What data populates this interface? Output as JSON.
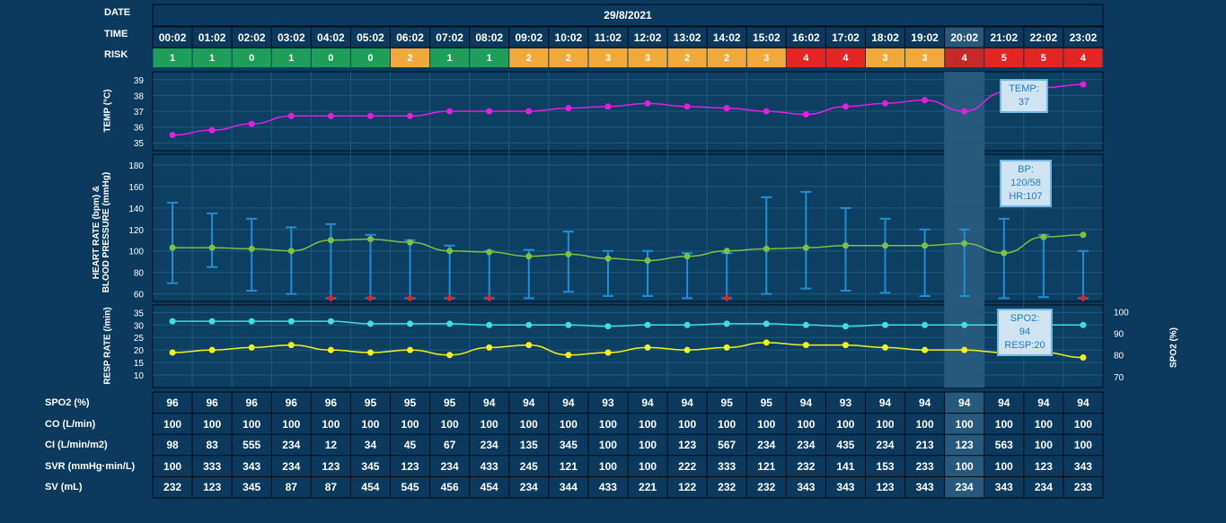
{
  "row_labels": {
    "date": "DATE",
    "time": "TIME",
    "risk": "RISK"
  },
  "date": "29/8/2021",
  "times": [
    "00:02",
    "01:02",
    "02:02",
    "03:02",
    "04:02",
    "05:02",
    "06:02",
    "07:02",
    "08:02",
    "09:02",
    "10:02",
    "11:02",
    "12:02",
    "13:02",
    "14:02",
    "15:02",
    "16:02",
    "17:02",
    "18:02",
    "19:02",
    "20:02",
    "21:02",
    "22:02",
    "23:02"
  ],
  "risk": [
    "1",
    "1",
    "0",
    "1",
    "0",
    "0",
    "2",
    "1",
    "1",
    "2",
    "2",
    "3",
    "3",
    "2",
    "2",
    "3",
    "4",
    "4",
    "3",
    "3",
    "4",
    "5",
    "5",
    "4"
  ],
  "risk_colors": {
    "0": "#1f9e5a",
    "1": "#1f9e5a",
    "2": "#f0a93a",
    "3": "#f0a93a",
    "4": "#e52424",
    "5": "#e52424"
  },
  "highlight_index": 20,
  "axis_titles": {
    "temp": "TEMP (°C)",
    "hr_bp_line1": "HEART RATE (bpm) &",
    "hr_bp_line2": "BLOOD PRESSURE (mmHg)",
    "resp": "RESP RATE (/min)",
    "spo2": "SPO2 (%)"
  },
  "tooltips": {
    "temp": [
      "TEMP:",
      "37"
    ],
    "bp": [
      "BP:",
      "120/58",
      "HR:107"
    ],
    "spo2": [
      "SPO2:",
      "94",
      "RESP:20"
    ]
  },
  "colors": {
    "temp": "#e020e0",
    "hr": "#7cc142",
    "bp": "#1f8fd6",
    "spo2": "#3de0e0",
    "resp": "#f2f21a",
    "alert": "#e52424"
  },
  "chart_data": [
    {
      "type": "line",
      "name": "temperature",
      "ylabel": "TEMP (°C)",
      "ylim": [
        34.5,
        39.5
      ],
      "yticks": [
        35,
        36,
        37,
        38,
        39
      ],
      "values": [
        35.5,
        35.8,
        36.2,
        36.7,
        36.7,
        36.7,
        36.7,
        37.0,
        37.0,
        37.0,
        37.2,
        37.3,
        37.5,
        37.3,
        37.2,
        37.0,
        36.8,
        37.3,
        37.5,
        37.7,
        37.0,
        38.2,
        38.5,
        38.7
      ]
    },
    {
      "type": "line",
      "name": "heart rate & blood pressure",
      "ylabel": "HEART RATE (bpm) & BLOOD PRESSURE (mmHg)",
      "ylim": [
        53,
        190
      ],
      "yticks": [
        60,
        80,
        100,
        120,
        140,
        160,
        180
      ],
      "hr": [
        103,
        103,
        102,
        100,
        110,
        111,
        108,
        100,
        99,
        95,
        97,
        93,
        91,
        95,
        100,
        102,
        103,
        105,
        105,
        105,
        107,
        98,
        113,
        115
      ],
      "bp_high": [
        145,
        135,
        130,
        122,
        125,
        115,
        110,
        105,
        100,
        101,
        118,
        100,
        100,
        98,
        98,
        150,
        155,
        140,
        130,
        120,
        120,
        130,
        115,
        100
      ],
      "bp_low": [
        70,
        85,
        63,
        60,
        56,
        56,
        56,
        56,
        56,
        56,
        62,
        58,
        58,
        56,
        56,
        60,
        65,
        63,
        61,
        58,
        58,
        56,
        57,
        56
      ],
      "alert_markers": [
        4,
        5,
        6,
        7,
        8,
        14,
        23
      ]
    },
    {
      "type": "line",
      "name": "resp rate & spo2",
      "ylabel": "RESP RATE (/min)",
      "ylim": [
        5,
        38
      ],
      "yticks": [
        10,
        15,
        20,
        25,
        30,
        35
      ],
      "y2label": "SPO2 (%)",
      "y2ticks": [
        70,
        80,
        90,
        100
      ],
      "resp": [
        19,
        20,
        21,
        22,
        20,
        19,
        20,
        18,
        21,
        22,
        18,
        19,
        21,
        20,
        21,
        23,
        22,
        22,
        21,
        20,
        20,
        19,
        19,
        17
      ],
      "spo2_line": [
        31.5,
        31.5,
        31.5,
        31.5,
        31.5,
        30.5,
        30.5,
        30.5,
        30,
        30,
        30,
        29.5,
        30,
        30,
        30.5,
        30.5,
        30,
        29.5,
        30,
        30,
        30,
        30,
        30,
        30
      ]
    }
  ],
  "table": {
    "rows": [
      {
        "label": "SPO2 (%)",
        "values": [
          "96",
          "96",
          "96",
          "96",
          "96",
          "95",
          "95",
          "95",
          "94",
          "94",
          "94",
          "93",
          "94",
          "94",
          "95",
          "95",
          "94",
          "93",
          "94",
          "94",
          "94",
          "94",
          "94",
          "94"
        ]
      },
      {
        "label": "CO (L/min)",
        "values": [
          "100",
          "100",
          "100",
          "100",
          "100",
          "100",
          "100",
          "100",
          "100",
          "100",
          "100",
          "100",
          "100",
          "100",
          "100",
          "100",
          "100",
          "100",
          "100",
          "100",
          "100",
          "100",
          "100",
          "100"
        ]
      },
      {
        "label": "CI (L/min/m2)",
        "values": [
          "98",
          "83",
          "555",
          "234",
          "12",
          "34",
          "45",
          "67",
          "234",
          "135",
          "345",
          "100",
          "100",
          "123",
          "567",
          "234",
          "234",
          "435",
          "234",
          "213",
          "123",
          "563",
          "100",
          "100"
        ]
      },
      {
        "label": "SVR (mmHg·min/L)",
        "values": [
          "100",
          "333",
          "343",
          "234",
          "123",
          "345",
          "123",
          "234",
          "433",
          "245",
          "121",
          "100",
          "100",
          "222",
          "333",
          "121",
          "232",
          "141",
          "153",
          "233",
          "100",
          "100",
          "123",
          "343"
        ]
      },
      {
        "label": "SV (mL)",
        "values": [
          "232",
          "123",
          "345",
          "87",
          "87",
          "454",
          "545",
          "456",
          "454",
          "234",
          "344",
          "433",
          "221",
          "122",
          "232",
          "232",
          "343",
          "343",
          "123",
          "343",
          "234",
          "343",
          "234",
          "233"
        ]
      }
    ]
  }
}
